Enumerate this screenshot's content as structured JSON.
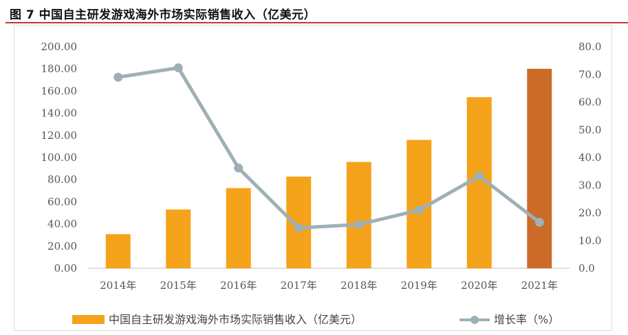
{
  "figure": {
    "title": "图 7  中国自主研发游戏海外市场实际销售收入（亿美元）"
  },
  "chart_data": {
    "type": "bar+line",
    "categories": [
      "2014年",
      "2015年",
      "2016年",
      "2017年",
      "2018年",
      "2019年",
      "2020年",
      "2021年"
    ],
    "series": [
      {
        "name": "中国自主研发游戏海外市场实际销售收入（亿美元）",
        "type": "bar",
        "axis": "left",
        "values": [
          30.8,
          53.1,
          72.4,
          82.8,
          96.0,
          115.9,
          154.5,
          180.1
        ],
        "colors": [
          "#f5a31a",
          "#f5a31a",
          "#f5a31a",
          "#f5a31a",
          "#f5a31a",
          "#f5a31a",
          "#f5a31a",
          "#cc6a28"
        ]
      },
      {
        "name": "增长率（%）",
        "type": "line",
        "axis": "right",
        "values": [
          69.0,
          72.4,
          36.2,
          14.6,
          15.8,
          21.0,
          33.3,
          16.6
        ],
        "color": "#9fb0b5"
      }
    ],
    "left_axis": {
      "min": 0,
      "max": 200,
      "step": 20,
      "tick_labels": [
        "0.00",
        "20.00",
        "40.00",
        "60.00",
        "80.00",
        "100.00",
        "120.00",
        "140.00",
        "160.00",
        "180.00",
        "200.00"
      ]
    },
    "right_axis": {
      "min": 0,
      "max": 80,
      "step": 10,
      "tick_labels": [
        "0.0",
        "10.0",
        "20.0",
        "30.0",
        "40.0",
        "50.0",
        "60.0",
        "70.0",
        "80.0"
      ]
    },
    "grid": false,
    "legend_position": "bottom"
  }
}
